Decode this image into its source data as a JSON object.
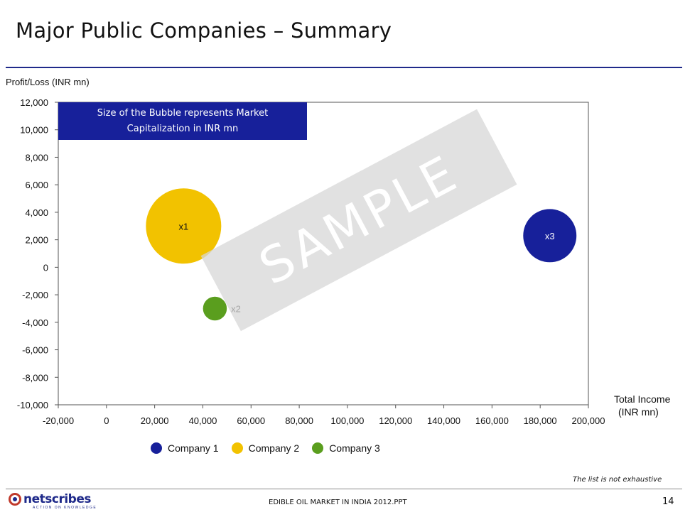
{
  "slide": {
    "title": "Major Public Companies – Summary",
    "note": "Size of the Bubble represents Market Capitalization in INR mn",
    "watermark": "SAMPLE",
    "footnote": "The list is not exhaustive",
    "footer_text": "EDIBLE OIL MARKET IN INDIA 2012.PPT",
    "page_number": "14",
    "logo_text": "netscribes",
    "logo_tagline": "ACTION ON KNOWLEDGE"
  },
  "chart_data": {
    "type": "scatter",
    "title": "",
    "xlabel": "Total Income (INR mn)",
    "ylabel": "Profit/Loss (INR mn)",
    "xlim": [
      -20000,
      200000
    ],
    "ylim": [
      -10000,
      12000
    ],
    "x_ticks": [
      "-20,000",
      "0",
      "20,000",
      "40,000",
      "60,000",
      "80,000",
      "100,000",
      "120,000",
      "140,000",
      "160,000",
      "180,000",
      "200,000"
    ],
    "y_ticks": [
      "12,000",
      "10,000",
      "8,000",
      "6,000",
      "4,000",
      "2,000",
      "0",
      "-2,000",
      "-4,000",
      "-6,000",
      "-8,000",
      "-10,000"
    ],
    "grid": false,
    "legend_position": "bottom",
    "series": [
      {
        "name": "Company 1",
        "color": "#17209a",
        "label": "x3",
        "x": 184000,
        "y": 2300,
        "relative_size": 0.5
      },
      {
        "name": "Company 2",
        "color": "#f2c200",
        "label": "x1",
        "x": 32000,
        "y": 3000,
        "relative_size": 1.0
      },
      {
        "name": "Company 3",
        "color": "#5a9e1e",
        "label": "x2",
        "x": 45000,
        "y": -3000,
        "relative_size": 0.1
      }
    ]
  }
}
